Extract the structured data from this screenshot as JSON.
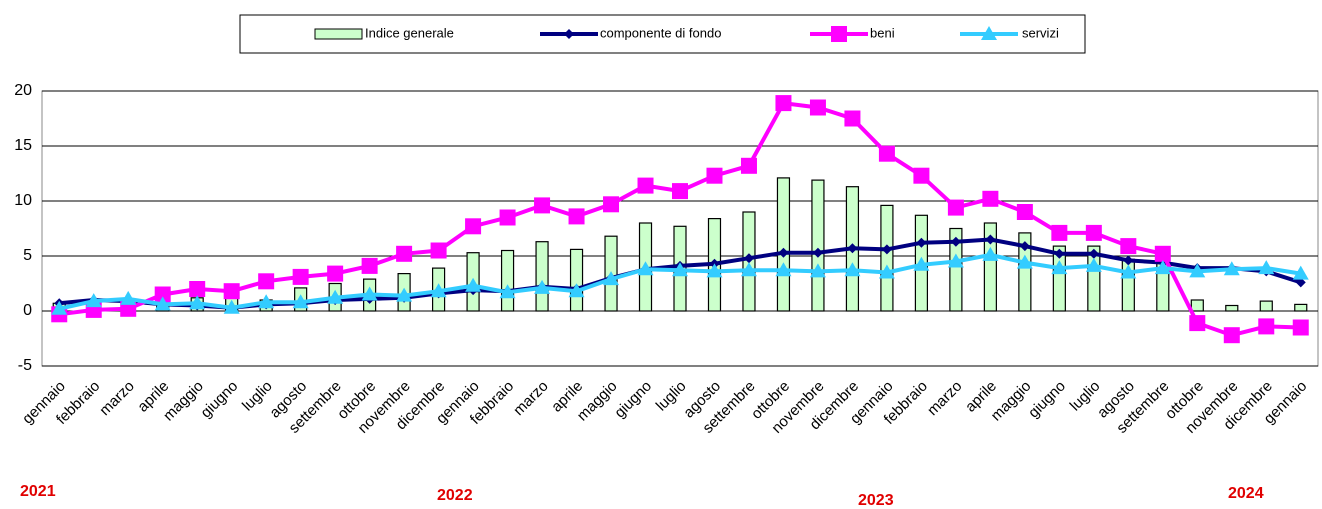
{
  "chart_data": {
    "type": "combo",
    "categories": [
      "gennaio",
      "febbraio",
      "marzo",
      "aprile",
      "maggio",
      "giugno",
      "luglio",
      "agosto",
      "settembre",
      "ottobre",
      "novembre",
      "dicembre",
      "gennaio",
      "febbraio",
      "marzo",
      "aprile",
      "maggio",
      "giugno",
      "luglio",
      "agosto",
      "settembre",
      "ottobre",
      "novembre",
      "dicembre",
      "gennaio",
      "febbraio",
      "marzo",
      "aprile",
      "maggio",
      "giugno",
      "luglio",
      "agosto",
      "settembre",
      "ottobre",
      "novembre",
      "dicembre",
      "gennaio"
    ],
    "years": [
      "2021",
      "2022",
      "2023",
      "2024"
    ],
    "series": [
      {
        "name": "Indice generale",
        "type": "bar",
        "color": "#ccffcc",
        "values": [
          0.7,
          1.0,
          0.6,
          1.0,
          1.2,
          1.3,
          1.0,
          2.1,
          2.5,
          2.9,
          3.4,
          3.9,
          5.3,
          5.5,
          6.3,
          5.6,
          6.8,
          8.0,
          7.7,
          8.4,
          9.0,
          12.1,
          11.9,
          11.3,
          9.6,
          8.7,
          7.5,
          8.0,
          7.1,
          5.9,
          5.9,
          4.7,
          4.8,
          1.0,
          0.5,
          0.9,
          0.6
        ]
      },
      {
        "name": "componente di fondo",
        "type": "line",
        "marker": "diamond",
        "color": "#000080",
        "values": [
          0.7,
          1.0,
          0.9,
          0.6,
          0.5,
          0.3,
          0.6,
          0.7,
          1.0,
          1.1,
          1.2,
          1.6,
          1.9,
          1.8,
          2.2,
          2.0,
          3.0,
          3.8,
          4.1,
          4.3,
          4.8,
          5.3,
          5.3,
          5.7,
          5.6,
          6.2,
          6.3,
          6.5,
          5.9,
          5.2,
          5.2,
          4.6,
          4.4,
          3.9,
          3.9,
          3.6,
          2.6
        ]
      },
      {
        "name": "beni",
        "type": "line",
        "marker": "square",
        "color": "#ff00ff",
        "values": [
          -0.3,
          0.1,
          0.2,
          1.5,
          2.0,
          1.8,
          2.7,
          3.1,
          3.4,
          4.1,
          5.2,
          5.5,
          7.7,
          8.5,
          9.6,
          8.6,
          9.7,
          11.4,
          10.9,
          12.3,
          13.2,
          18.9,
          18.5,
          17.5,
          14.3,
          12.3,
          9.4,
          10.2,
          9.0,
          7.1,
          7.1,
          5.9,
          5.2,
          -1.1,
          -2.2,
          -1.4,
          -1.5
        ]
      },
      {
        "name": "servizi",
        "type": "line",
        "marker": "triangle",
        "color": "#33ccff",
        "values": [
          0.2,
          0.9,
          1.1,
          0.6,
          0.7,
          0.3,
          0.8,
          0.8,
          1.2,
          1.5,
          1.4,
          1.8,
          2.3,
          1.7,
          2.1,
          1.8,
          2.9,
          3.8,
          3.7,
          3.6,
          3.7,
          3.7,
          3.6,
          3.7,
          3.5,
          4.2,
          4.5,
          5.1,
          4.4,
          3.9,
          4.1,
          3.5,
          3.9,
          3.6,
          3.8,
          3.9,
          3.4
        ]
      }
    ],
    "ylim": [
      -5,
      20
    ],
    "yticks": [
      -5,
      0,
      5,
      10,
      15,
      20
    ],
    "grid": true,
    "legend": "top"
  }
}
